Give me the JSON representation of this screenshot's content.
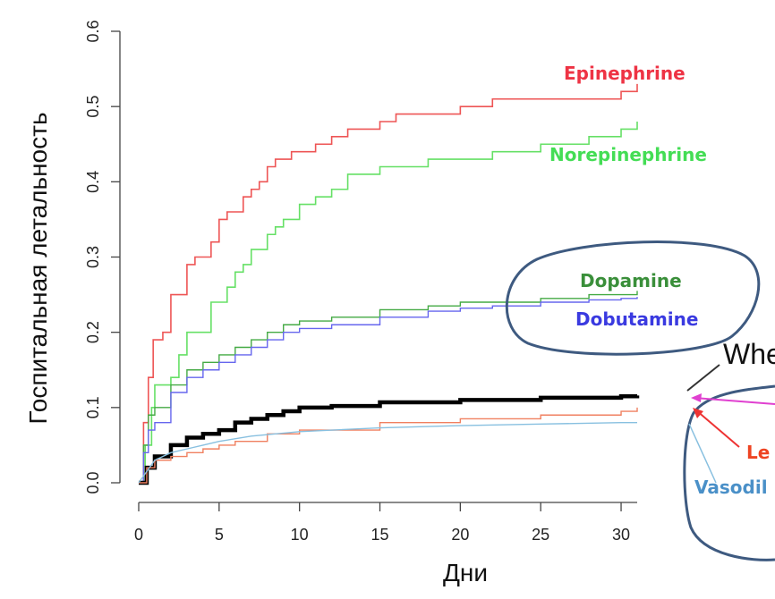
{
  "chart_data": {
    "type": "line",
    "title": "",
    "xlabel": "Дни",
    "ylabel": "Госпитальная летальность",
    "xlim": [
      0,
      31
    ],
    "ylim": [
      0,
      0.6
    ],
    "x_ticks": [
      0,
      5,
      10,
      15,
      20,
      25,
      30
    ],
    "y_ticks": [
      "0.0",
      "0.1",
      "0.2",
      "0.3",
      "0.4",
      "0.5",
      "0.6"
    ],
    "grid": false,
    "legend": "none",
    "series": [
      {
        "name": "Epinephrine",
        "label": "Epinephrine",
        "color": "#ee5555",
        "step": true,
        "width": 1.6,
        "x": [
          0,
          0.3,
          0.6,
          0.9,
          1.5,
          2,
          2.5,
          3,
          3.5,
          4,
          4.5,
          5,
          5.5,
          6,
          6.5,
          7,
          7.5,
          8,
          8.5,
          9,
          9.5,
          10,
          11,
          12,
          13,
          14,
          15,
          16,
          18,
          20,
          22,
          25,
          28,
          30,
          31
        ],
        "y": [
          0,
          0.08,
          0.14,
          0.19,
          0.2,
          0.25,
          0.25,
          0.29,
          0.3,
          0.3,
          0.32,
          0.35,
          0.36,
          0.36,
          0.38,
          0.39,
          0.4,
          0.42,
          0.43,
          0.43,
          0.44,
          0.44,
          0.45,
          0.46,
          0.47,
          0.47,
          0.48,
          0.49,
          0.49,
          0.5,
          0.51,
          0.51,
          0.51,
          0.52,
          0.53
        ]
      },
      {
        "name": "Norepinephrine",
        "label": "Norepinephrine",
        "color": "#66e066",
        "step": true,
        "width": 1.6,
        "x": [
          0,
          0.4,
          0.8,
          1,
          2,
          2.5,
          3,
          4,
          4.5,
          5,
          5.5,
          6,
          6.5,
          7,
          7.5,
          8,
          8.5,
          9,
          10,
          11,
          12,
          13,
          15,
          18,
          20,
          22,
          25,
          28,
          30,
          31
        ],
        "y": [
          0,
          0.05,
          0.1,
          0.13,
          0.14,
          0.17,
          0.2,
          0.2,
          0.24,
          0.24,
          0.26,
          0.28,
          0.29,
          0.31,
          0.31,
          0.33,
          0.34,
          0.35,
          0.37,
          0.38,
          0.39,
          0.41,
          0.42,
          0.43,
          0.43,
          0.44,
          0.45,
          0.46,
          0.47,
          0.48
        ]
      },
      {
        "name": "Dopamine",
        "label": "Dopamine",
        "color": "#44aa44",
        "step": true,
        "width": 1.4,
        "x": [
          0,
          0.3,
          0.6,
          1,
          2,
          3,
          4,
          5,
          6,
          7,
          8,
          9,
          10,
          12,
          15,
          18,
          20,
          22,
          25,
          28,
          30,
          31
        ],
        "y": [
          0,
          0.05,
          0.09,
          0.1,
          0.13,
          0.15,
          0.16,
          0.17,
          0.18,
          0.19,
          0.2,
          0.21,
          0.215,
          0.22,
          0.23,
          0.235,
          0.24,
          0.24,
          0.245,
          0.25,
          0.25,
          0.255
        ]
      },
      {
        "name": "Dobutamine",
        "label": "Dobutamine",
        "color": "#6666ee",
        "step": true,
        "width": 1.4,
        "x": [
          0,
          0.3,
          0.6,
          1,
          2,
          3,
          4,
          5,
          6,
          7,
          8,
          9,
          10,
          12,
          15,
          18,
          20,
          22,
          25,
          28,
          30,
          31
        ],
        "y": [
          0,
          0.04,
          0.07,
          0.08,
          0.12,
          0.14,
          0.15,
          0.16,
          0.17,
          0.18,
          0.19,
          0.2,
          0.205,
          0.21,
          0.22,
          0.228,
          0.232,
          0.235,
          0.24,
          0.243,
          0.245,
          0.247
        ]
      },
      {
        "name": "Whole",
        "label": "Whe",
        "color": "#000000",
        "step": true,
        "width": 4.5,
        "x": [
          0,
          0.5,
          1,
          2,
          3,
          4,
          5,
          6,
          7,
          8,
          9,
          10,
          12,
          15,
          20,
          25,
          30,
          31
        ],
        "y": [
          0,
          0.02,
          0.035,
          0.05,
          0.06,
          0.065,
          0.07,
          0.08,
          0.085,
          0.09,
          0.095,
          0.1,
          0.102,
          0.107,
          0.11,
          0.113,
          0.115,
          0.116
        ]
      },
      {
        "name": "Levosimendan",
        "label": "Le",
        "color": "#f08060",
        "step": true,
        "width": 1.4,
        "x": [
          0,
          0.5,
          1,
          2,
          3,
          4,
          5,
          6,
          8,
          10,
          15,
          20,
          25,
          30,
          31
        ],
        "y": [
          0,
          0.02,
          0.03,
          0.035,
          0.04,
          0.045,
          0.05,
          0.055,
          0.065,
          0.07,
          0.08,
          0.085,
          0.09,
          0.095,
          0.1
        ]
      },
      {
        "name": "Vasodilators",
        "label": "Vasodil",
        "color": "#88c0e0",
        "step": false,
        "width": 1.4,
        "x": [
          0,
          1,
          2,
          3,
          4,
          5,
          7,
          10,
          15,
          20,
          25,
          30,
          31
        ],
        "y": [
          0,
          0.03,
          0.04,
          0.045,
          0.05,
          0.055,
          0.062,
          0.068,
          0.073,
          0.076,
          0.078,
          0.08,
          0.08
        ]
      }
    ],
    "annotations": {
      "epinephrine": "Epinephrine",
      "norepinephrine": "Norepinephrine",
      "dopamine": "Dopamine",
      "dobutamine": "Dobutamine",
      "whole": "Whe",
      "levosimendan": "Le",
      "vasodilators": "Vasodil"
    },
    "colors": {
      "callout": "#3e5a80",
      "magenta_arrow": "#e040d0",
      "red_arrow": "#ee3333",
      "dopamine_label": "#3a8f3a",
      "dobutamine_label": "#3a3ae0",
      "lev_label": "#ee4422",
      "vasodil_label": "#4a90c8"
    }
  }
}
